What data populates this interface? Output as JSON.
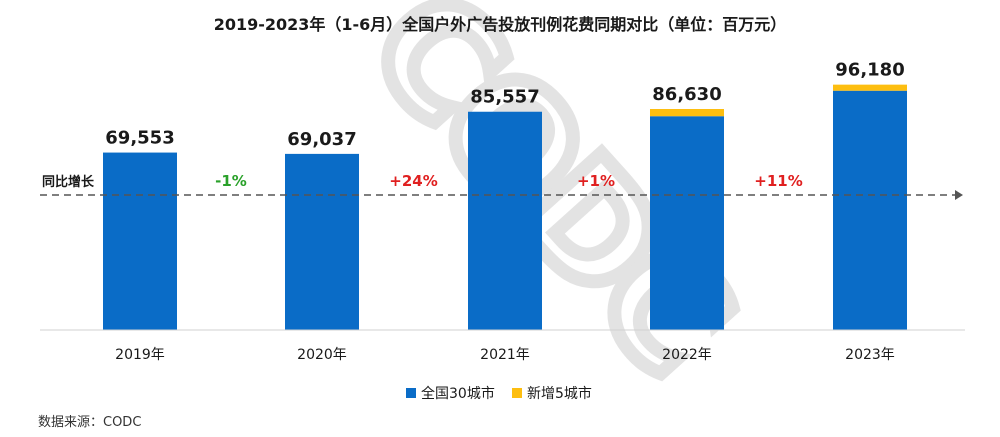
{
  "chart_data": {
    "type": "bar",
    "stacked": true,
    "title": "2019-2023年（1-6月）全国户外广告投放刊例花费同期对比（单位：百万元）",
    "categories": [
      "2019年",
      "2020年",
      "2021年",
      "2022年",
      "2023年"
    ],
    "series": [
      {
        "name": "全国30城市",
        "color": "#0a6cc7",
        "values": [
          69553,
          69037,
          85557,
          83800,
          93800
        ]
      },
      {
        "name": "新增5城市",
        "color": "#fdbe10",
        "values": [
          0,
          0,
          0,
          2830,
          2380
        ]
      }
    ],
    "totals": [
      "69,553",
      "69,037",
      "85,557",
      "86,630",
      "96,180"
    ],
    "growth_label": "同比增长",
    "growth": [
      {
        "text": "-1%",
        "color": "#2aa12a"
      },
      {
        "text": "+24%",
        "color": "#e02020"
      },
      {
        "text": "+1%",
        "color": "#e02020"
      },
      {
        "text": "+11%",
        "color": "#e02020"
      }
    ],
    "ylim": [
      0,
      100000
    ],
    "grid": false,
    "legend_position": "bottom",
    "watermark": "CODC",
    "source": "数据来源：CODC"
  }
}
